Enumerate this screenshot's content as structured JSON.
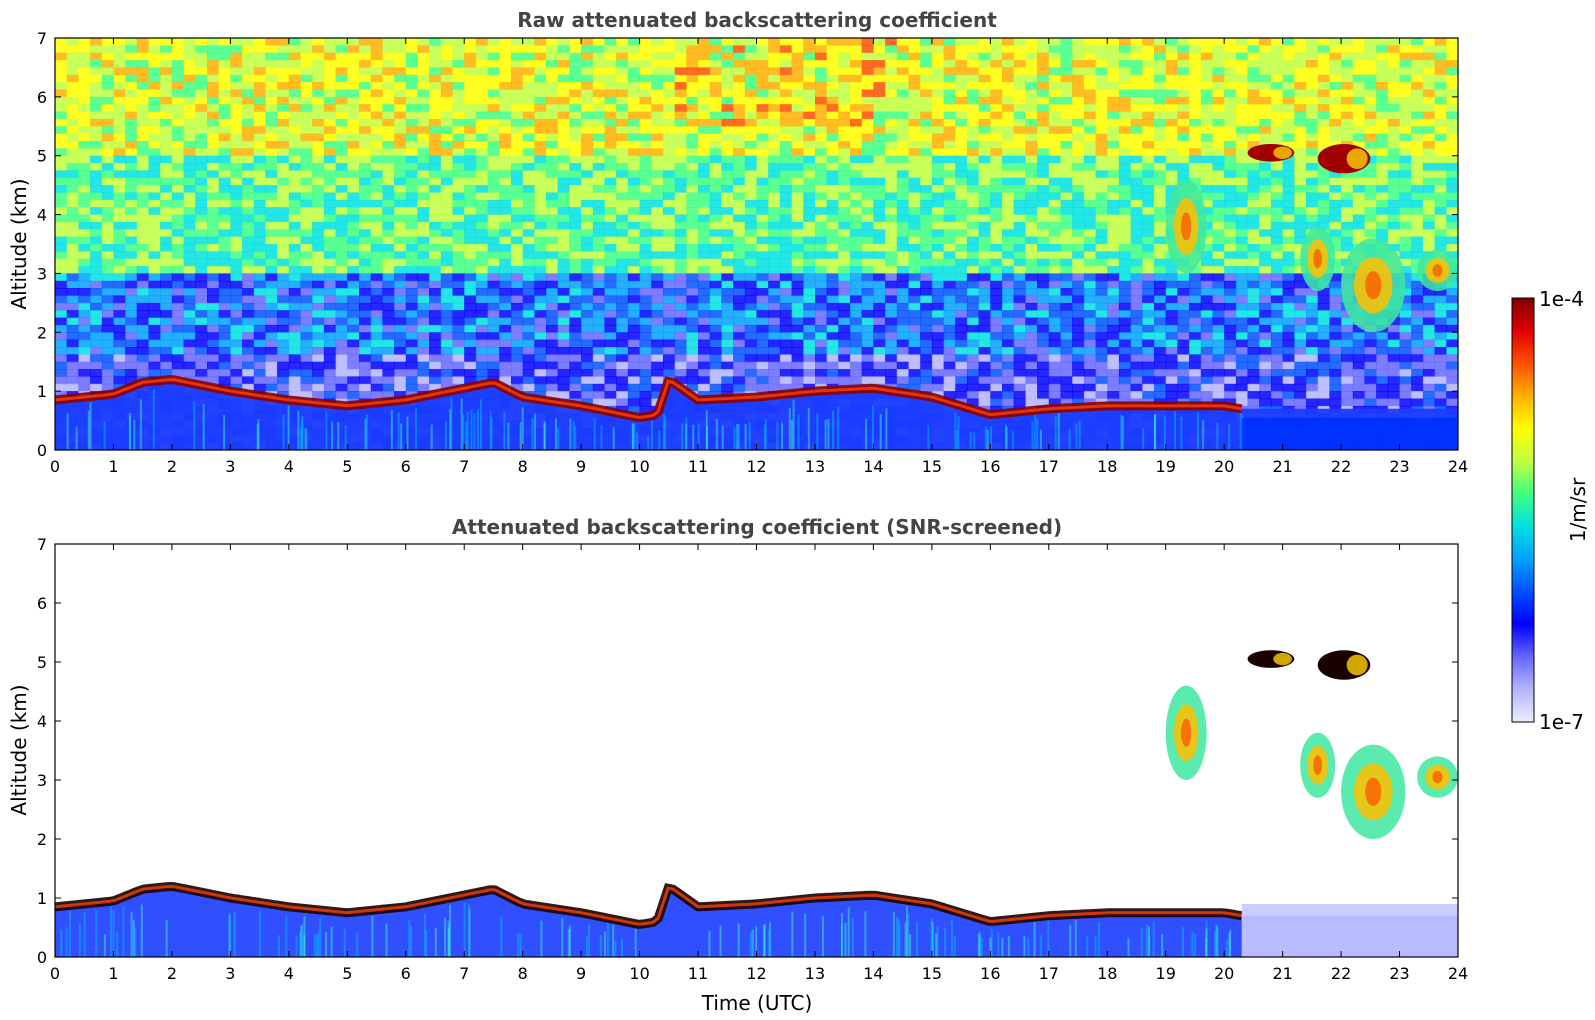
{
  "chart_data": [
    {
      "type": "heatmap",
      "title": "Raw attenuated backscattering coefficient",
      "xlabel": "",
      "ylabel": "Altitude (km)",
      "xlim": [
        0,
        24
      ],
      "ylim": [
        0,
        7
      ],
      "xticks": [
        "0",
        "1",
        "2",
        "3",
        "4",
        "5",
        "6",
        "7",
        "8",
        "9",
        "10",
        "11",
        "12",
        "13",
        "14",
        "15",
        "16",
        "17",
        "18",
        "19",
        "20",
        "21",
        "22",
        "23",
        "24"
      ],
      "yticks": [
        "0",
        "1",
        "2",
        "3",
        "4",
        "5",
        "6",
        "7"
      ],
      "background": "noisy",
      "features": [
        {
          "name": "boundary-layer cloud base",
          "x": [
            0,
            1,
            1.5,
            2,
            3,
            4,
            5,
            6,
            7,
            7.5,
            8,
            9,
            10,
            10.3,
            10.5,
            11,
            12,
            13,
            14,
            15,
            16,
            17,
            18,
            19,
            20,
            20.3
          ],
          "y": [
            0.85,
            0.95,
            1.15,
            1.2,
            1.0,
            0.85,
            0.75,
            0.85,
            1.05,
            1.15,
            0.9,
            0.75,
            0.55,
            0.6,
            1.2,
            0.85,
            0.9,
            1.0,
            1.05,
            0.9,
            0.6,
            0.7,
            0.75,
            0.75,
            0.75,
            0.7
          ]
        },
        {
          "name": "mid-level cloud",
          "x0": 19.0,
          "x1": 19.7,
          "y0": 3.0,
          "y1": 4.6
        },
        {
          "name": "mid-level cloud",
          "x0": 21.3,
          "x1": 21.9,
          "y0": 2.7,
          "y1": 3.8
        },
        {
          "name": "mid-level cloud",
          "x0": 22.0,
          "x1": 23.1,
          "y0": 2.0,
          "y1": 3.6
        },
        {
          "name": "mid-level cloud",
          "x0": 23.3,
          "x1": 24.0,
          "y0": 2.7,
          "y1": 3.4
        },
        {
          "name": "upper cloud",
          "x0": 20.4,
          "x1": 21.2,
          "y0": 4.9,
          "y1": 5.2
        },
        {
          "name": "upper cloud",
          "x0": 21.6,
          "x1": 22.5,
          "y0": 4.7,
          "y1": 5.2
        }
      ]
    },
    {
      "type": "heatmap",
      "title": "Attenuated backscattering coefficient (SNR-screened)",
      "xlabel": "Time (UTC)",
      "ylabel": "Altitude (km)",
      "xlim": [
        0,
        24
      ],
      "ylim": [
        0,
        7
      ],
      "xticks": [
        "0",
        "1",
        "2",
        "3",
        "4",
        "5",
        "6",
        "7",
        "8",
        "9",
        "10",
        "11",
        "12",
        "13",
        "14",
        "15",
        "16",
        "17",
        "18",
        "19",
        "20",
        "21",
        "22",
        "23",
        "24"
      ],
      "yticks": [
        "0",
        "1",
        "2",
        "3",
        "4",
        "5",
        "6",
        "7"
      ],
      "background": "screened",
      "features": [
        {
          "name": "boundary-layer cloud base",
          "x": [
            0,
            1,
            1.5,
            2,
            3,
            4,
            5,
            6,
            7,
            7.5,
            8,
            9,
            10,
            10.3,
            10.5,
            11,
            12,
            13,
            14,
            15,
            16,
            17,
            18,
            19,
            20,
            20.3
          ],
          "y": [
            0.85,
            0.95,
            1.15,
            1.2,
            1.0,
            0.85,
            0.75,
            0.85,
            1.05,
            1.15,
            0.9,
            0.75,
            0.55,
            0.6,
            1.2,
            0.85,
            0.9,
            1.0,
            1.05,
            0.9,
            0.6,
            0.7,
            0.75,
            0.75,
            0.75,
            0.7
          ]
        },
        {
          "name": "mid-level cloud",
          "x0": 19.0,
          "x1": 19.7,
          "y0": 3.0,
          "y1": 4.6
        },
        {
          "name": "mid-level cloud",
          "x0": 21.3,
          "x1": 21.9,
          "y0": 2.7,
          "y1": 3.8
        },
        {
          "name": "mid-level cloud",
          "x0": 22.0,
          "x1": 23.1,
          "y0": 2.0,
          "y1": 3.6
        },
        {
          "name": "mid-level cloud",
          "x0": 23.3,
          "x1": 24.0,
          "y0": 2.7,
          "y1": 3.4
        },
        {
          "name": "upper cloud",
          "x0": 20.4,
          "x1": 21.2,
          "y0": 4.9,
          "y1": 5.2
        },
        {
          "name": "upper cloud",
          "x0": 21.6,
          "x1": 22.5,
          "y0": 4.7,
          "y1": 5.2
        }
      ]
    }
  ],
  "colorbar": {
    "label": "1/m/sr",
    "max_label": "1e-4",
    "min_label": "1e-7",
    "range": [
      1e-07,
      0.0001
    ],
    "colormap": [
      "#ececff",
      "#b4b4ff",
      "#6666ff",
      "#0000ff",
      "#0050ff",
      "#00a0ff",
      "#00e0e0",
      "#40ff80",
      "#c0ff40",
      "#ffff00",
      "#ffb000",
      "#ff5000",
      "#e00000",
      "#800000"
    ]
  }
}
